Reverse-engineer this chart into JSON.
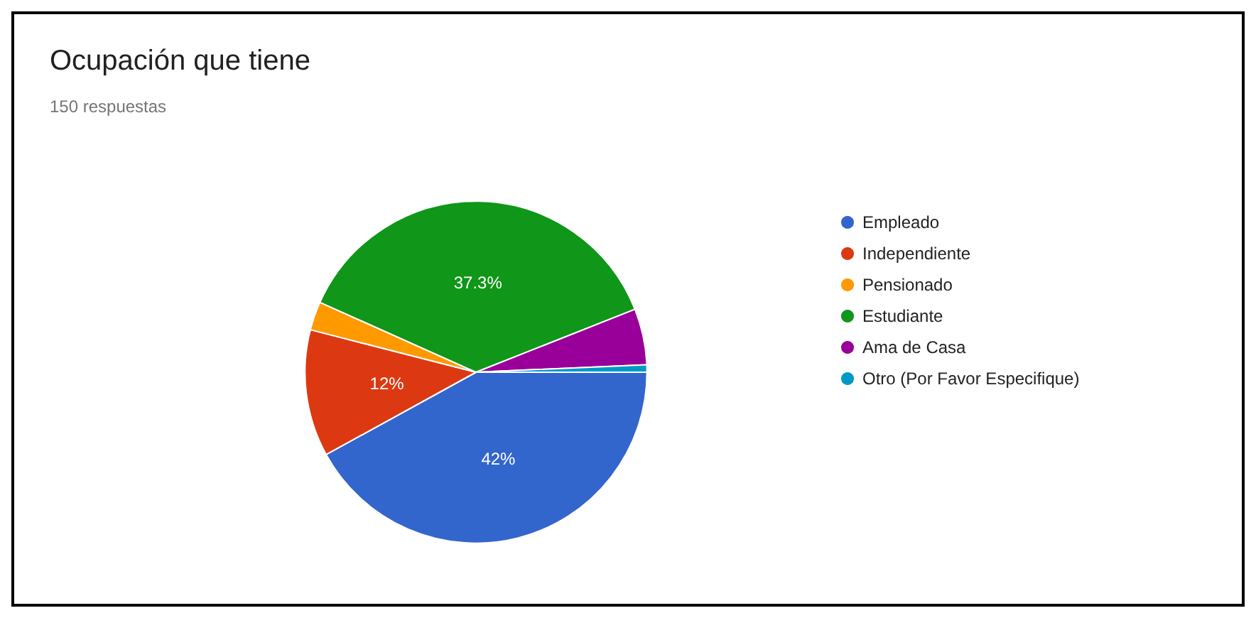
{
  "chart_data": {
    "type": "pie",
    "title": "Ocupación que tiene",
    "subtitle": "150 respuestas",
    "categories": [
      "Empleado",
      "Independiente",
      "Pensionado",
      "Estudiante",
      "Ama de Casa",
      "Otro (Por Favor Especifique)"
    ],
    "values": [
      42,
      12,
      2.7,
      37.3,
      5.3,
      0.7
    ],
    "colors": [
      "#3366cc",
      "#dc3912",
      "#ff9900",
      "#109618",
      "#990099",
      "#0099c6"
    ],
    "value_labels": [
      "42%",
      "12%",
      null,
      "37.3%",
      null,
      null
    ],
    "legend": "right"
  }
}
